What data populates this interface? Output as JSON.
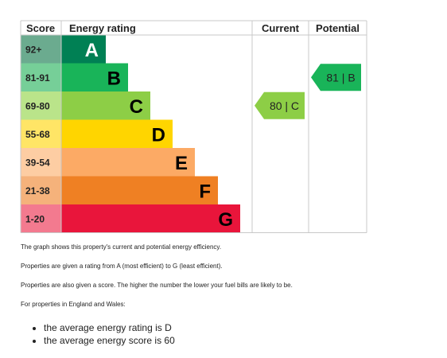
{
  "chart_data": {
    "type": "bar",
    "headers": {
      "score": "Score",
      "rating": "Energy rating",
      "current": "Current",
      "potential": "Potential"
    },
    "bands": [
      {
        "score": "92+",
        "letter": "A",
        "color": "#008054",
        "score_bg": "#6bab8f"
      },
      {
        "score": "81-91",
        "letter": "B",
        "color": "#19b459",
        "score_bg": "#76cf98"
      },
      {
        "score": "69-80",
        "letter": "C",
        "color": "#8dce46",
        "score_bg": "#bae48a"
      },
      {
        "score": "55-68",
        "letter": "D",
        "color": "#ffd500",
        "score_bg": "#ffe566"
      },
      {
        "score": "39-54",
        "letter": "E",
        "color": "#fcaa65",
        "score_bg": "#fdcda3"
      },
      {
        "score": "21-38",
        "letter": "F",
        "color": "#ef8023",
        "score_bg": "#f5b27b"
      },
      {
        "score": "1-20",
        "letter": "G",
        "color": "#e9153b",
        "score_bg": "#f37a8f"
      }
    ],
    "current": {
      "value": 80,
      "band": "C",
      "label": "80 | C"
    },
    "potential": {
      "value": 81,
      "band": "B",
      "label": "81 | B"
    }
  },
  "notes": {
    "p1": "The graph shows this property's current and potential energy efficiency.",
    "p2": "Properties are given a rating from A (most efficient) to G (least efficient).",
    "p3": "Properties are also given a score. The higher the number the lower your fuel bills are likely to be.",
    "p4": "For properties in England and Wales:"
  },
  "averages": [
    "the average energy rating is D",
    "the average energy score is 60"
  ]
}
